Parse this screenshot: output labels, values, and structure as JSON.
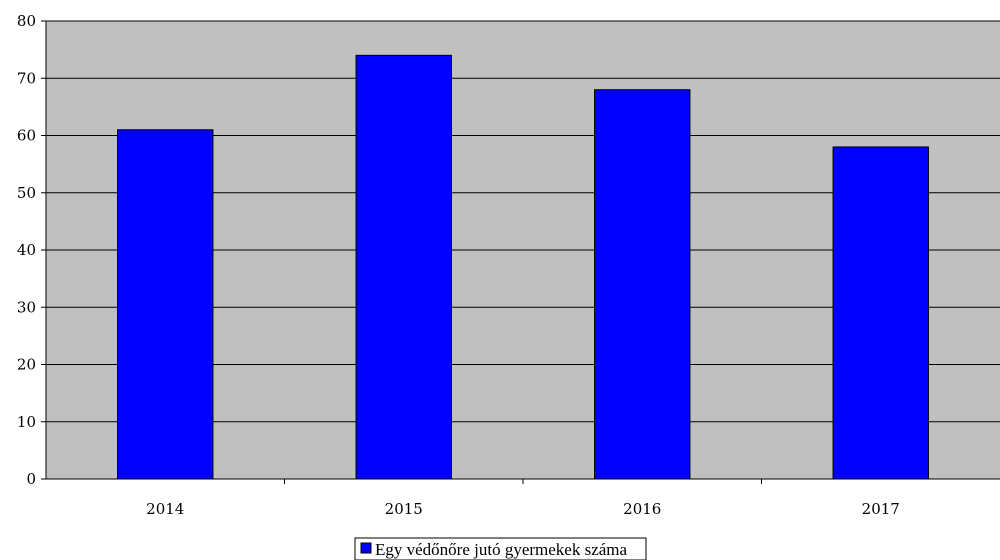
{
  "chart_data": {
    "type": "bar",
    "categories": [
      "2014",
      "2015",
      "2016",
      "2017"
    ],
    "series": [
      {
        "name": "Egy védőnőre jutó gyermekek száma",
        "values": [
          61,
          74,
          68,
          58
        ]
      }
    ],
    "title": "",
    "xlabel": "",
    "ylabel": "",
    "ylim": [
      0,
      80
    ],
    "yticks": [
      "0",
      "10",
      "20",
      "30",
      "40",
      "50",
      "60",
      "70",
      "80"
    ],
    "grid": true,
    "legend_position": "bottom-center",
    "colors": {
      "bar": "#0000ff",
      "plot_background": "#c0c0c0",
      "gridline": "#000000"
    }
  }
}
